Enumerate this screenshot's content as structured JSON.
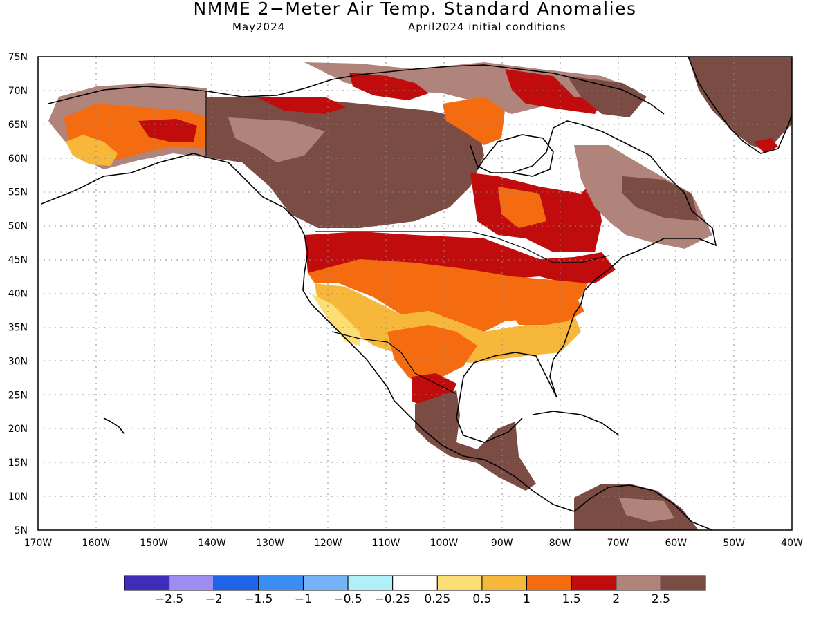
{
  "title": "NMME 2−Meter Air Temp. Standard Anomalies",
  "subtitle_left": "May2024",
  "subtitle_right": "April2024 initial conditions",
  "map": {
    "lon_range": [
      -170,
      -40
    ],
    "lat_range": [
      5,
      75
    ],
    "lat_labels": [
      "75N",
      "70N",
      "65N",
      "60N",
      "55N",
      "50N",
      "45N",
      "40N",
      "35N",
      "30N",
      "25N",
      "20N",
      "15N",
      "10N",
      "5N"
    ],
    "lon_labels": [
      "170W",
      "160W",
      "150W",
      "140W",
      "130W",
      "120W",
      "110W",
      "100W",
      "90W",
      "80W",
      "70W",
      "60W",
      "50W",
      "40W"
    ],
    "grid": true
  },
  "colorbar": {
    "labels": [
      "−2.5",
      "−2",
      "−1.5",
      "−1",
      "−0.5",
      "−0.25",
      "0.25",
      "0.5",
      "1",
      "1.5",
      "2",
      "2.5"
    ],
    "colors": [
      "#3d2db8",
      "#9e8cf0",
      "#1f63e6",
      "#3a8ef2",
      "#74b4f6",
      "#b0f0f8",
      "#ffffff",
      "#fbde74",
      "#f7b73a",
      "#f56b10",
      "#c00c0c",
      "#b0847a",
      "#7a4c44"
    ]
  },
  "anomaly_colors": {
    "light_yellow": "#fbde74",
    "yellow_orange": "#f7b73a",
    "orange": "#f56b10",
    "red": "#c00c0c",
    "light_brown": "#b0847a",
    "dark_brown": "#7a4c44"
  }
}
